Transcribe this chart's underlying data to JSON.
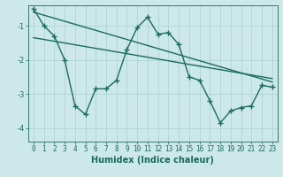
{
  "xlabel": "Humidex (Indice chaleur)",
  "bg_color": "#cce8e8",
  "line_color": "#1a6b5a",
  "grid_color": "#b0d4d4",
  "x_values": [
    0,
    1,
    2,
    3,
    4,
    5,
    6,
    7,
    8,
    9,
    10,
    11,
    12,
    13,
    14,
    15,
    16,
    17,
    18,
    19,
    20,
    21,
    22,
    23
  ],
  "main_y": [
    -0.5,
    -1.0,
    -1.3,
    -2.0,
    -3.35,
    -3.6,
    -2.85,
    -2.85,
    -2.6,
    -1.7,
    -1.05,
    -0.75,
    -1.25,
    -1.2,
    -1.55,
    -2.5,
    -2.6,
    -3.2,
    -3.85,
    -3.5,
    -3.4,
    -3.35,
    -2.75,
    -2.8
  ],
  "trend1_x": [
    0,
    23
  ],
  "trend1_y": [
    -0.6,
    -2.65
  ],
  "trend2_x": [
    0,
    23
  ],
  "trend2_y": [
    -1.35,
    -2.55
  ],
  "ylim": [
    -4.4,
    -0.4
  ],
  "xlim": [
    -0.5,
    23.5
  ],
  "yticks": [
    -4,
    -3,
    -2,
    -1
  ],
  "xticks": [
    0,
    1,
    2,
    3,
    4,
    5,
    6,
    7,
    8,
    9,
    10,
    11,
    12,
    13,
    14,
    15,
    16,
    17,
    18,
    19,
    20,
    21,
    22,
    23
  ],
  "linewidth": 1.0,
  "markersize": 4,
  "tick_fontsize": 5.5,
  "xlabel_fontsize": 7
}
